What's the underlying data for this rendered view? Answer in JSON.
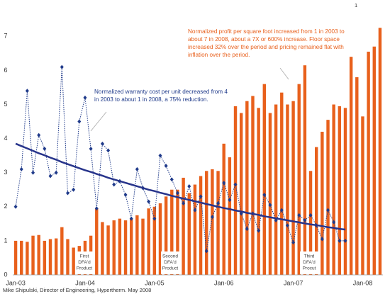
{
  "chart_data": {
    "type": "bar_line",
    "categories": [
      "Jan-03",
      null,
      null,
      null,
      null,
      null,
      null,
      null,
      null,
      null,
      null,
      null,
      "Jan-04",
      null,
      null,
      null,
      null,
      null,
      null,
      null,
      null,
      null,
      null,
      null,
      "Jan-05",
      null,
      null,
      null,
      null,
      null,
      null,
      null,
      null,
      null,
      null,
      null,
      "Jan-06",
      null,
      null,
      null,
      null,
      null,
      null,
      null,
      null,
      null,
      null,
      null,
      "Jan-07",
      null,
      null,
      null,
      null,
      null,
      null,
      null,
      null,
      null,
      null,
      null,
      "Jan-08",
      null,
      null,
      null
    ],
    "series": [
      {
        "kind": "bar",
        "color": "#e8601c",
        "values": [
          1.0,
          1.0,
          0.97,
          1.15,
          1.17,
          1.0,
          1.05,
          1.07,
          1.4,
          1.05,
          0.8,
          0.85,
          1.0,
          1.15,
          1.95,
          1.55,
          1.45,
          1.6,
          1.65,
          1.6,
          1.65,
          1.75,
          1.65,
          1.95,
          2.0,
          2.1,
          2.3,
          2.5,
          2.5,
          2.85,
          2.4,
          2.65,
          2.9,
          3.05,
          3.1,
          3.05,
          3.85,
          3.45,
          4.95,
          4.75,
          5.1,
          5.25,
          4.9,
          5.6,
          4.75,
          5.0,
          5.35,
          5.0,
          5.1,
          5.6,
          6.15,
          3.05,
          3.75,
          4.2,
          4.55,
          5.0,
          4.95,
          4.9,
          6.4,
          5.8,
          4.65,
          6.55,
          6.7,
          7.25
        ]
      },
      {
        "kind": "dotted",
        "color": "#1f3a8a",
        "values": [
          2.0,
          3.1,
          5.4,
          3.0,
          4.1,
          3.7,
          2.9,
          3.0,
          6.1,
          2.4,
          2.5,
          4.5,
          5.2,
          3.7,
          1.95,
          3.85,
          3.65,
          2.65,
          2.75,
          2.35,
          1.65,
          3.1,
          2.55,
          2.15,
          1.65,
          3.5,
          3.2,
          2.8,
          2.4,
          2.1,
          2.6,
          1.9,
          2.3,
          0.7,
          1.7,
          2.1,
          2.7,
          2.2,
          2.65,
          1.8,
          1.35,
          1.8,
          1.3,
          2.35,
          2.05,
          1.6,
          1.9,
          1.45,
          0.95,
          1.75,
          1.6,
          1.75,
          1.45,
          1.05,
          1.9,
          1.55,
          1.0,
          1.0,
          null,
          null,
          null,
          null,
          null,
          null
        ]
      },
      {
        "kind": "trend",
        "color": "#27348b",
        "values": [
          3.85,
          3.78,
          3.71,
          3.64,
          3.57,
          3.51,
          3.44,
          3.38,
          3.31,
          3.25,
          3.19,
          3.13,
          3.07,
          3.02,
          2.96,
          2.91,
          2.85,
          2.8,
          2.75,
          2.7,
          2.65,
          2.6,
          2.55,
          2.5,
          2.46,
          2.41,
          2.37,
          2.32,
          2.28,
          2.24,
          2.2,
          2.16,
          2.12,
          2.08,
          2.04,
          2.0,
          1.96,
          1.93,
          1.89,
          1.86,
          1.82,
          1.79,
          1.76,
          1.72,
          1.69,
          1.66,
          1.63,
          1.6,
          1.57,
          1.54,
          1.51,
          1.48,
          1.46,
          1.43,
          1.4,
          1.38,
          1.35,
          1.33,
          null,
          null,
          null,
          null,
          null,
          null
        ]
      }
    ],
    "ylim": [
      0,
      7.3
    ],
    "yticks": [
      0,
      1,
      2,
      3,
      4,
      5,
      6,
      7
    ],
    "page_number": "1",
    "annotations": [
      {
        "lines": [
          "Normalized profit per square foot increased from 1 in 2003 to",
          "about 7 in 2008, about a 7X or 600% increase.  Floor space",
          "increased 32% over the period and pricing remained flat with",
          "inflation over the period."
        ]
      },
      {
        "lines": [
          "Normalized warranty cost per unit decreased from 4",
          "in 2003 to about 1 in 2008, a 75% reduction."
        ]
      }
    ],
    "milestones": [
      {
        "lines": [
          "First",
          "DFA'd",
          "Product"
        ]
      },
      {
        "lines": [
          "Second",
          "DFA'd",
          "Product"
        ]
      },
      {
        "lines": [
          "Third",
          "DFA'd",
          "Procut"
        ]
      }
    ],
    "footer": "Mike Shipulski, Director of Engineering, Hypertherm.  May  2008"
  }
}
